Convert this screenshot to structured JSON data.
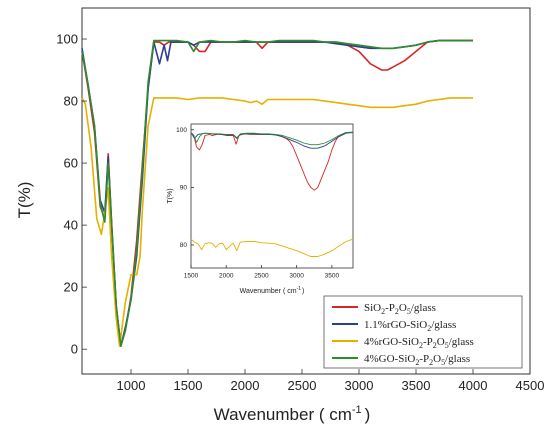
{
  "chart_data": [
    {
      "type": "line",
      "xlabel": "Wavenumber ( cm",
      "xlabel_sup": "-1",
      "xlabel_close": ")",
      "ylabel": "T(%)",
      "xlim": [
        570,
        4500
      ],
      "ylim": [
        -8,
        110
      ],
      "xticks": [
        1000,
        1500,
        2000,
        2500,
        3000,
        3500,
        4000,
        4500
      ],
      "yticks": [
        0,
        20,
        40,
        60,
        80,
        100
      ],
      "grid": false,
      "legend_position": "bottom-right",
      "series": [
        {
          "name": "SiO2-P2O5/glass",
          "color": "#d62728",
          "x": [
            570,
            620,
            680,
            730,
            770,
            800,
            830,
            870,
            910,
            950,
            1000,
            1050,
            1100,
            1150,
            1200,
            1250,
            1290,
            1330,
            1400,
            1500,
            1550,
            1600,
            1650,
            1700,
            1800,
            1900,
            2000,
            2100,
            2150,
            2200,
            2300,
            2400,
            2500,
            2600,
            2700,
            2800,
            2900,
            3000,
            3050,
            3100,
            3200,
            3250,
            3300,
            3400,
            3500,
            3600,
            3700,
            3800,
            3900,
            4000
          ],
          "y": [
            96,
            85,
            70,
            46,
            42,
            63,
            40,
            14,
            1,
            6,
            17,
            35,
            60,
            84,
            99,
            99,
            98,
            99,
            99,
            99,
            98,
            96,
            96,
            99,
            99,
            99,
            99,
            99,
            97,
            99,
            99,
            99,
            99,
            99,
            99,
            99,
            98,
            96,
            94,
            92,
            90,
            90,
            91,
            93,
            96,
            99,
            99.5,
            99.5,
            99.5,
            99.5
          ]
        },
        {
          "name": "1.1%rGO-SiO2/glass",
          "color": "#2b3f8c",
          "x": [
            570,
            620,
            680,
            730,
            770,
            800,
            830,
            870,
            910,
            950,
            1000,
            1050,
            1100,
            1150,
            1200,
            1250,
            1290,
            1320,
            1350,
            1400,
            1500,
            1550,
            1600,
            1700,
            1800,
            1900,
            2000,
            2100,
            2200,
            2300,
            2400,
            2500,
            2600,
            2700,
            2800,
            2900,
            3000,
            3100,
            3200,
            3300,
            3400,
            3500,
            3600,
            3700,
            3800,
            3900,
            4000
          ],
          "y": [
            97,
            86,
            72,
            48,
            44,
            62,
            41,
            14,
            1,
            7,
            16,
            30,
            55,
            84,
            99,
            92,
            98,
            93,
            99,
            99,
            99,
            98,
            99,
            99,
            99,
            99,
            99,
            99,
            99,
            99,
            99,
            99,
            99,
            99,
            98.5,
            98,
            97.5,
            97,
            97,
            97,
            97.5,
            98,
            99,
            99.5,
            99.5,
            99.5,
            99.5
          ]
        },
        {
          "name": "4%rGO-SiO2-P2O5/glass",
          "color": "#e5b100",
          "x": [
            570,
            600,
            650,
            700,
            740,
            770,
            800,
            830,
            870,
            900,
            950,
            1000,
            1050,
            1080,
            1100,
            1150,
            1200,
            1300,
            1400,
            1500,
            1600,
            1700,
            1800,
            1900,
            2000,
            2050,
            2100,
            2150,
            2200,
            2300,
            2400,
            2500,
            2600,
            2700,
            2800,
            2900,
            3000,
            3100,
            3200,
            3300,
            3400,
            3500,
            3600,
            3700,
            3800,
            3900,
            4000
          ],
          "y": [
            81,
            79,
            65,
            42,
            37,
            44,
            52,
            30,
            10,
            1,
            15,
            24,
            24,
            30,
            45,
            72,
            81,
            81,
            81,
            80.5,
            81,
            81,
            81,
            80.5,
            80,
            79.5,
            80,
            79,
            80.5,
            80.5,
            80.5,
            80.5,
            80.5,
            80,
            79.5,
            79,
            78.5,
            78,
            78,
            78,
            78.5,
            79,
            80,
            80.5,
            81,
            81,
            81
          ]
        },
        {
          "name": "4%GO-SiO2-P2O5/glass",
          "color": "#2e8b2e",
          "x": [
            570,
            620,
            680,
            730,
            770,
            800,
            830,
            870,
            910,
            950,
            1000,
            1050,
            1100,
            1150,
            1200,
            1300,
            1400,
            1500,
            1550,
            1600,
            1700,
            1800,
            1900,
            2000,
            2100,
            2200,
            2300,
            2400,
            2500,
            2600,
            2700,
            2800,
            2900,
            3000,
            3100,
            3200,
            3300,
            3400,
            3500,
            3600,
            3700,
            3800,
            3900,
            4000
          ],
          "y": [
            96,
            86,
            72,
            47,
            41,
            60,
            40,
            14,
            1,
            6,
            16,
            32,
            58,
            86,
            99.5,
            99.5,
            99.5,
            99,
            96,
            99,
            99.5,
            99,
            99,
            99.5,
            99,
            99,
            99.5,
            99.5,
            99.5,
            99.5,
            99,
            99,
            98.5,
            98,
            97.5,
            97,
            97,
            97.5,
            98,
            99,
            99.5,
            99.5,
            99.5,
            99.5
          ]
        }
      ]
    },
    {
      "type": "line",
      "xlabel": "Wavenumber ( cm",
      "xlabel_sup": "-1",
      "xlabel_close": ")",
      "ylabel": "T(%)",
      "xlim": [
        1500,
        3800
      ],
      "ylim": [
        76,
        101
      ],
      "xticks": [
        1500,
        2000,
        2500,
        3000,
        3500
      ],
      "yticks": [
        80,
        90,
        100
      ],
      "grid": false,
      "series": [
        {
          "color": "#d62728",
          "x": [
            1500,
            1540,
            1580,
            1620,
            1660,
            1700,
            1760,
            1800,
            1900,
            2000,
            2100,
            2140,
            2180,
            2250,
            2350,
            2450,
            2550,
            2650,
            2750,
            2850,
            2900,
            2950,
            3000,
            3050,
            3100,
            3150,
            3200,
            3250,
            3300,
            3350,
            3400,
            3450,
            3500,
            3550,
            3600,
            3700,
            3800
          ],
          "y": [
            99.5,
            99,
            97,
            96.5,
            97.5,
            99,
            99.2,
            99,
            99.3,
            99,
            99,
            97.5,
            99,
            99.3,
            99.2,
            99.2,
            99.2,
            99.2,
            99,
            98.5,
            98,
            97,
            95.5,
            94,
            92.5,
            91,
            90,
            89.5,
            90,
            91.5,
            93,
            94.5,
            96.5,
            98,
            99,
            99.5,
            99.5
          ]
        },
        {
          "color": "#2b3f8c",
          "x": [
            1500,
            1550,
            1600,
            1650,
            1700,
            1800,
            1900,
            2000,
            2100,
            2150,
            2200,
            2300,
            2400,
            2500,
            2600,
            2700,
            2800,
            2900,
            3000,
            3100,
            3200,
            3300,
            3400,
            3500,
            3600,
            3700,
            3800
          ],
          "y": [
            99.5,
            98.5,
            99.2,
            99.3,
            99.4,
            99.3,
            99.2,
            99.1,
            99.1,
            98.5,
            99.2,
            99.3,
            99.3,
            99.2,
            99.2,
            99.1,
            98.8,
            98.3,
            97.8,
            97.2,
            96.8,
            96.8,
            97.2,
            98,
            98.8,
            99.4,
            99.5
          ]
        },
        {
          "color": "#e5b100",
          "x": [
            1500,
            1550,
            1600,
            1650,
            1700,
            1750,
            1800,
            1850,
            1900,
            1950,
            2000,
            2050,
            2100,
            2150,
            2200,
            2300,
            2400,
            2500,
            2600,
            2700,
            2800,
            2900,
            3000,
            3100,
            3200,
            3300,
            3400,
            3500,
            3600,
            3700,
            3800
          ],
          "y": [
            81,
            80.5,
            80.2,
            79.2,
            80.2,
            80.4,
            80.3,
            79.6,
            80.2,
            80.3,
            79.2,
            79.8,
            80.3,
            79,
            80.5,
            80.6,
            80.6,
            80.4,
            80.3,
            80.2,
            79.8,
            79.4,
            79,
            78.5,
            78,
            78,
            78.4,
            79,
            79.8,
            80.6,
            81
          ]
        },
        {
          "color": "#2e8b2e",
          "x": [
            1500,
            1540,
            1580,
            1620,
            1660,
            1700,
            1800,
            1900,
            2000,
            2100,
            2150,
            2200,
            2300,
            2400,
            2500,
            2600,
            2700,
            2800,
            2900,
            3000,
            3100,
            3200,
            3300,
            3400,
            3500,
            3600,
            3700,
            3800
          ],
          "y": [
            99.5,
            99,
            97.8,
            98.8,
            99.3,
            99.4,
            99.3,
            99.3,
            99.2,
            99.2,
            98.6,
            99.3,
            99.4,
            99.4,
            99.3,
            99.3,
            99.2,
            99,
            98.6,
            98.2,
            97.7,
            97.4,
            97.4,
            97.7,
            98.3,
            99,
            99.5,
            99.6
          ]
        }
      ]
    }
  ],
  "legend": {
    "entries": [
      {
        "text": "SiO",
        "sub1": "2",
        "mid": "-P",
        "sub2": "2",
        "mid2": "O",
        "sub3": "5",
        "tail": "/glass",
        "color": "#d62728"
      },
      {
        "text": "1.1%rGO-SiO",
        "sub1": "2",
        "mid": "/glass",
        "sub2": "",
        "mid2": "",
        "sub3": "",
        "tail": "",
        "color": "#2b3f8c"
      },
      {
        "text": "4%rGO-SiO",
        "sub1": "2",
        "mid": "-P",
        "sub2": "2",
        "mid2": "O",
        "sub3": "5",
        "tail": "/glass",
        "color": "#e5b100"
      },
      {
        "text": "4%GO-SiO",
        "sub1": "2",
        "mid": "-P",
        "sub2": "2",
        "mid2": "O",
        "sub3": "5",
        "tail": "/glass",
        "color": "#2e8b2e"
      }
    ]
  }
}
